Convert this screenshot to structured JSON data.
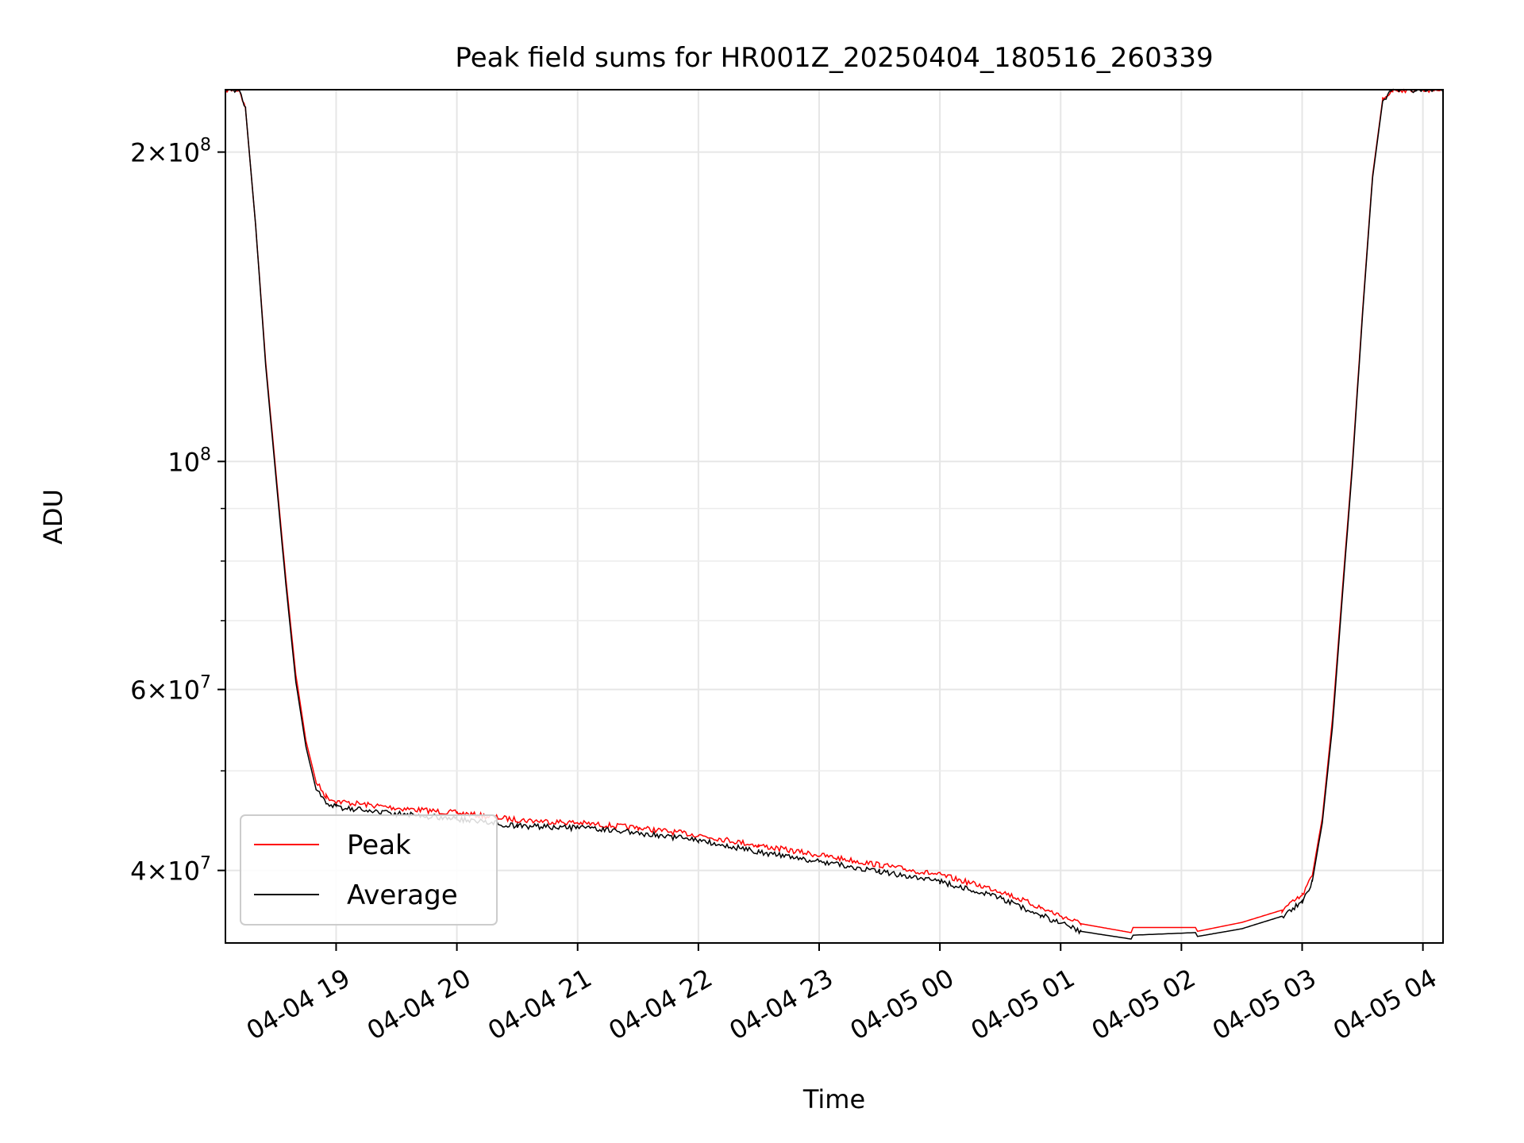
{
  "chart_data": {
    "type": "line",
    "title": "Peak field sums for HR001Z_20250404_180516_260339",
    "xlabel": "Time",
    "ylabel": "ADU",
    "yscale": "log",
    "ylim": [
      34000000,
      230000000
    ],
    "xlim": [
      "2025-04-04 18:05",
      "2025-04-05 04:10"
    ],
    "grid": true,
    "legend_position": "lower-left",
    "xticks": [
      {
        "t": "2025-04-04 19:00",
        "label": "04-04 19"
      },
      {
        "t": "2025-04-04 20:00",
        "label": "04-04 20"
      },
      {
        "t": "2025-04-04 21:00",
        "label": "04-04 21"
      },
      {
        "t": "2025-04-04 22:00",
        "label": "04-04 22"
      },
      {
        "t": "2025-04-04 23:00",
        "label": "04-04 23"
      },
      {
        "t": "2025-04-05 00:00",
        "label": "04-05 00"
      },
      {
        "t": "2025-04-05 01:00",
        "label": "04-05 01"
      },
      {
        "t": "2025-04-05 02:00",
        "label": "04-05 02"
      },
      {
        "t": "2025-04-05 03:00",
        "label": "04-05 03"
      },
      {
        "t": "2025-04-05 04:00",
        "label": "04-05 04"
      }
    ],
    "yticks_major": [
      {
        "value": 40000000,
        "mant": "4",
        "exp": "7"
      },
      {
        "value": 60000000,
        "mant": "6",
        "exp": "7"
      },
      {
        "value": 100000000,
        "mant": "",
        "exp": "8"
      },
      {
        "value": 200000000,
        "mant": "2",
        "exp": "8"
      }
    ],
    "yticks_minor": [
      50000000,
      70000000,
      80000000,
      90000000
    ],
    "series": [
      {
        "name": "Peak",
        "color": "#ff0000",
        "points": [
          [
            "2025-04-04 18:05",
            230000000
          ],
          [
            "2025-04-04 18:12",
            230000000
          ],
          [
            "2025-04-04 18:15",
            220000000
          ],
          [
            "2025-04-04 18:20",
            170000000
          ],
          [
            "2025-04-04 18:25",
            125000000
          ],
          [
            "2025-04-04 18:30",
            98000000
          ],
          [
            "2025-04-04 18:35",
            77000000
          ],
          [
            "2025-04-04 18:40",
            62000000
          ],
          [
            "2025-04-04 18:45",
            53500000
          ],
          [
            "2025-04-04 18:50",
            48800000
          ],
          [
            "2025-04-04 18:55",
            47200000
          ],
          [
            "2025-04-04 19:00",
            46700000
          ],
          [
            "2025-04-04 19:30",
            46000000
          ],
          [
            "2025-04-04 20:00",
            45500000
          ],
          [
            "2025-04-04 20:30",
            44800000
          ],
          [
            "2025-04-04 21:00",
            44500000
          ],
          [
            "2025-04-04 21:30",
            44000000
          ],
          [
            "2025-04-04 22:00",
            43300000
          ],
          [
            "2025-04-04 22:30",
            42300000
          ],
          [
            "2025-04-04 23:00",
            41400000
          ],
          [
            "2025-04-04 23:30",
            40500000
          ],
          [
            "2025-04-05 00:00",
            39600000
          ],
          [
            "2025-04-05 00:30",
            38200000
          ],
          [
            "2025-04-05 00:50",
            36800000
          ],
          [
            "2025-04-05 01:10",
            35500000
          ],
          [
            "2025-04-05 01:35",
            34800000
          ],
          [
            "2025-04-05 01:36",
            35200000
          ],
          [
            "2025-04-05 02:07",
            35200000
          ],
          [
            "2025-04-05 02:08",
            34900000
          ],
          [
            "2025-04-05 02:30",
            35600000
          ],
          [
            "2025-04-05 02:50",
            36600000
          ],
          [
            "2025-04-05 03:00",
            37800000
          ],
          [
            "2025-04-05 03:05",
            39500000
          ],
          [
            "2025-04-05 03:10",
            45000000
          ],
          [
            "2025-04-05 03:15",
            56000000
          ],
          [
            "2025-04-05 03:20",
            75000000
          ],
          [
            "2025-04-05 03:25",
            100000000
          ],
          [
            "2025-04-05 03:30",
            140000000
          ],
          [
            "2025-04-05 03:35",
            190000000
          ],
          [
            "2025-04-05 03:40",
            225000000
          ],
          [
            "2025-04-05 03:45",
            230000000
          ],
          [
            "2025-04-05 04:10",
            230000000
          ]
        ]
      },
      {
        "name": "Average",
        "color": "#000000",
        "points": [
          [
            "2025-04-04 18:05",
            230000000
          ],
          [
            "2025-04-04 18:12",
            230000000
          ],
          [
            "2025-04-04 18:15",
            220000000
          ],
          [
            "2025-04-04 18:20",
            170000000
          ],
          [
            "2025-04-04 18:25",
            124000000
          ],
          [
            "2025-04-04 18:30",
            97000000
          ],
          [
            "2025-04-04 18:35",
            76000000
          ],
          [
            "2025-04-04 18:40",
            61000000
          ],
          [
            "2025-04-04 18:45",
            52800000
          ],
          [
            "2025-04-04 18:50",
            48000000
          ],
          [
            "2025-04-04 18:55",
            46600000
          ],
          [
            "2025-04-04 19:00",
            46100000
          ],
          [
            "2025-04-04 19:30",
            45400000
          ],
          [
            "2025-04-04 20:00",
            44900000
          ],
          [
            "2025-04-04 20:30",
            44200000
          ],
          [
            "2025-04-04 21:00",
            44000000
          ],
          [
            "2025-04-04 21:30",
            43500000
          ],
          [
            "2025-04-04 22:00",
            42800000
          ],
          [
            "2025-04-04 22:30",
            41700000
          ],
          [
            "2025-04-04 23:00",
            40800000
          ],
          [
            "2025-04-04 23:30",
            39900000
          ],
          [
            "2025-04-05 00:00",
            39000000
          ],
          [
            "2025-04-05 00:30",
            37600000
          ],
          [
            "2025-04-05 00:50",
            36200000
          ],
          [
            "2025-04-05 01:10",
            34900000
          ],
          [
            "2025-04-05 01:35",
            34300000
          ],
          [
            "2025-04-05 01:36",
            34600000
          ],
          [
            "2025-04-05 02:07",
            34800000
          ],
          [
            "2025-04-05 02:08",
            34500000
          ],
          [
            "2025-04-05 02:30",
            35100000
          ],
          [
            "2025-04-05 02:50",
            36100000
          ],
          [
            "2025-04-05 03:00",
            37300000
          ],
          [
            "2025-04-05 03:05",
            39000000
          ],
          [
            "2025-04-05 03:10",
            44500000
          ],
          [
            "2025-04-05 03:15",
            55000000
          ],
          [
            "2025-04-05 03:20",
            74000000
          ],
          [
            "2025-04-05 03:25",
            99000000
          ],
          [
            "2025-04-05 03:30",
            139000000
          ],
          [
            "2025-04-05 03:35",
            189000000
          ],
          [
            "2025-04-05 03:40",
            224000000
          ],
          [
            "2025-04-05 03:45",
            230000000
          ],
          [
            "2025-04-05 04:10",
            230000000
          ]
        ]
      }
    ]
  }
}
